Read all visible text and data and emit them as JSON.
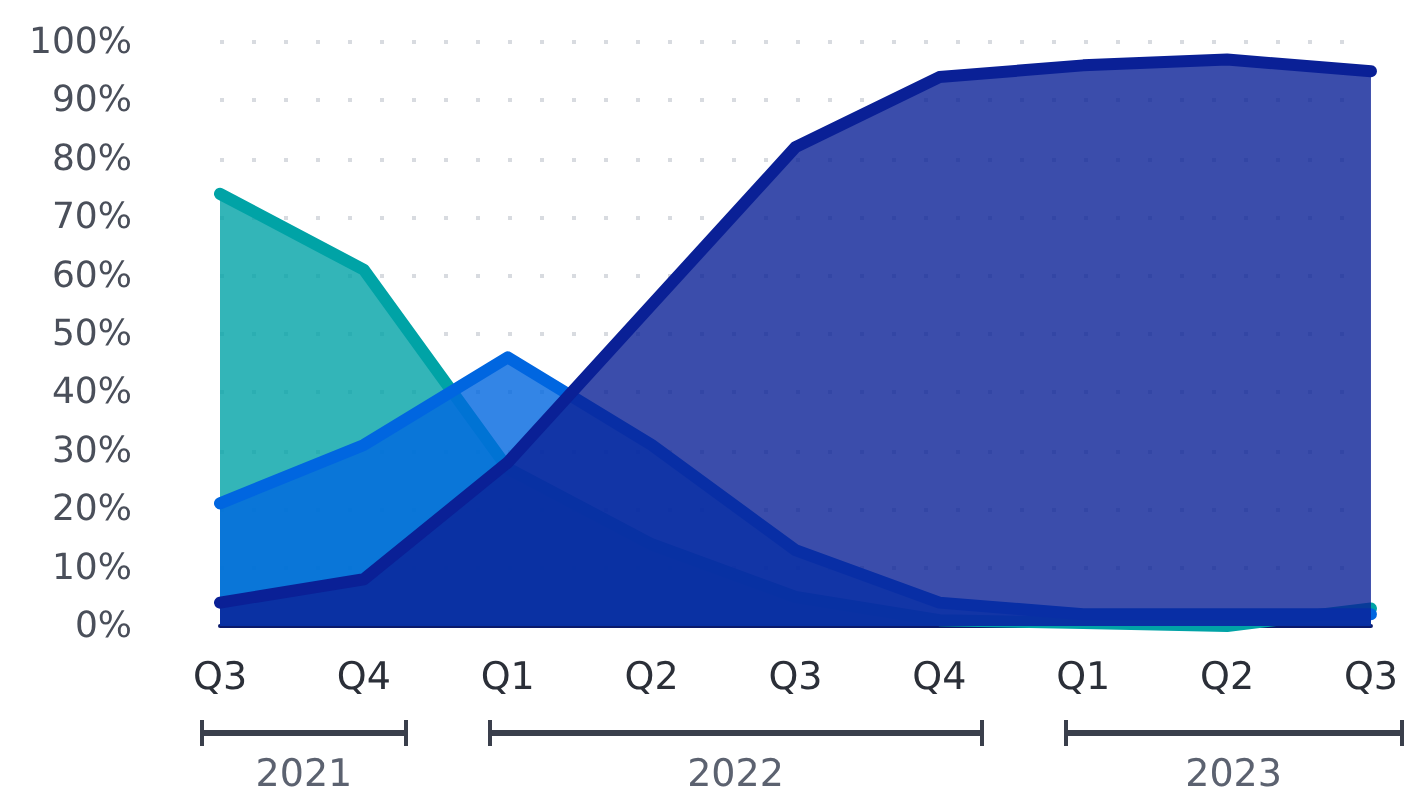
{
  "chart_data": {
    "type": "area",
    "categories": [
      "Q3",
      "Q4",
      "Q1",
      "Q2",
      "Q3",
      "Q4",
      "Q1",
      "Q2",
      "Q3"
    ],
    "series": [
      {
        "color": "#00a3a6",
        "values": [
          74,
          61,
          27,
          14,
          5,
          1,
          0.5,
          0,
          3
        ]
      },
      {
        "color": "#0066e0",
        "values": [
          21,
          31,
          46,
          31,
          13,
          4,
          2,
          2,
          2
        ]
      },
      {
        "color": "#0a2096",
        "values": [
          4,
          8,
          28,
          55,
          82,
          94,
          96,
          97,
          95
        ]
      }
    ],
    "ylim": [
      0,
      100
    ],
    "yticks": [
      {
        "value": 0,
        "label": "0%"
      },
      {
        "value": 10,
        "label": "10%"
      },
      {
        "value": 20,
        "label": "20%"
      },
      {
        "value": 30,
        "label": "30%"
      },
      {
        "value": 40,
        "label": "40%"
      },
      {
        "value": 50,
        "label": "50%"
      },
      {
        "value": 60,
        "label": "60%"
      },
      {
        "value": 70,
        "label": "70%"
      },
      {
        "value": 80,
        "label": "80%"
      },
      {
        "value": 90,
        "label": "90%"
      },
      {
        "value": 100,
        "label": "100%"
      }
    ],
    "annotations": [
      "2021",
      "2022",
      "2023"
    ],
    "grid": "y"
  }
}
